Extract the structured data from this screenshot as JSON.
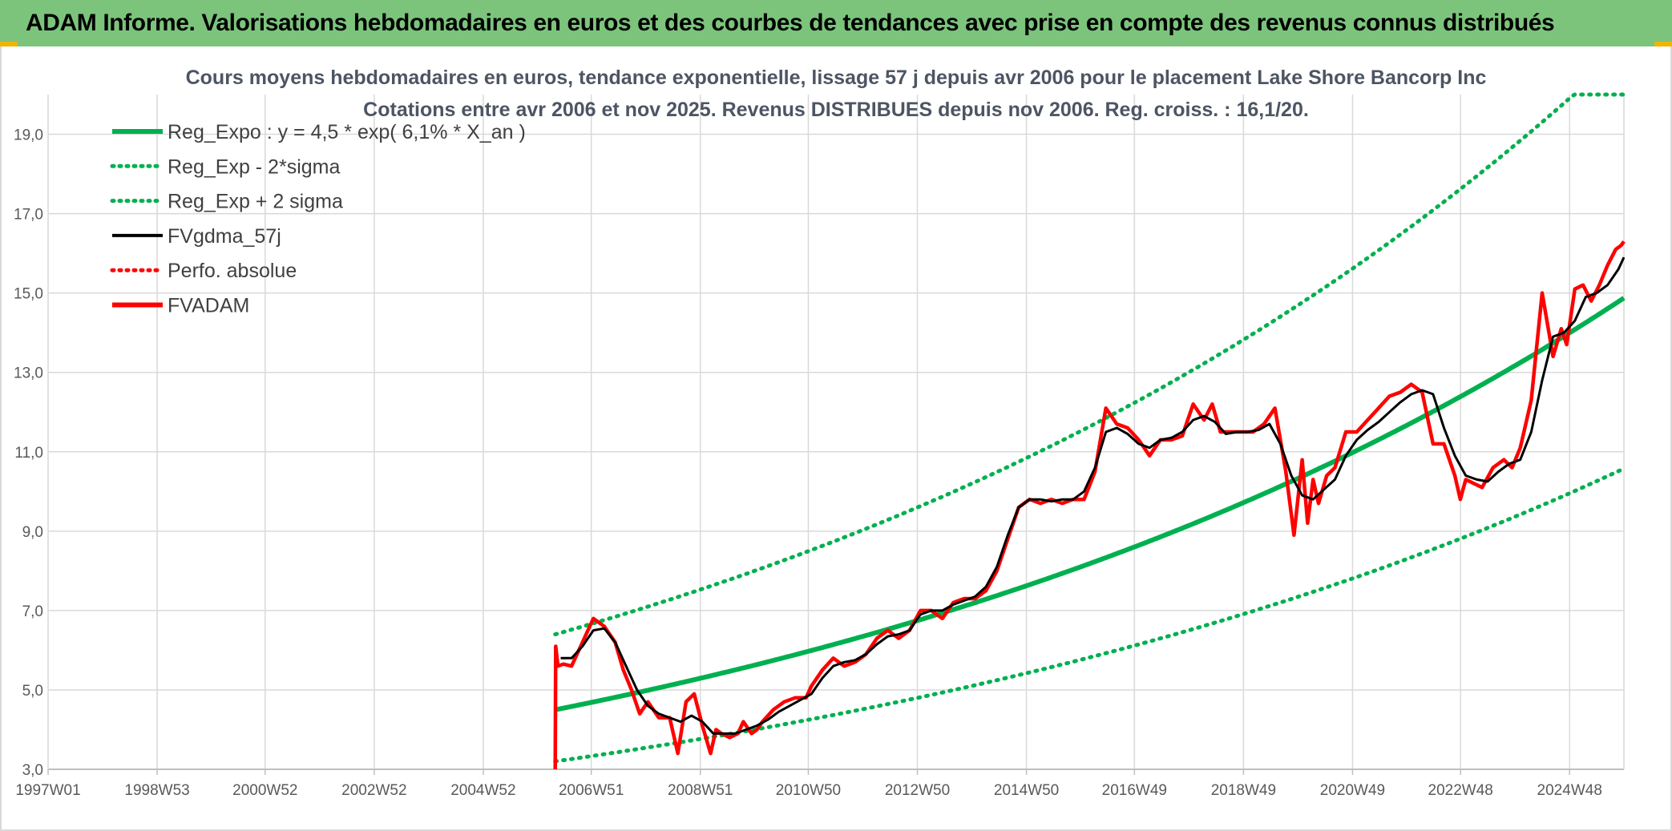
{
  "banner": {
    "title": "ADAM Informe. Valorisations hebdomadaires en euros et des courbes de tendances avec prise en compte des revenus connus distribués"
  },
  "colors": {
    "banner_bg": "#7cc47c",
    "reg_expo": "#00b050",
    "fvgdma": "#000000",
    "fvadam": "#ff0000",
    "grid": "#d9d9d9"
  },
  "chart_data": {
    "type": "line",
    "title_lines": [
      "Cours moyens hebdomadaires en euros, tendance exponentielle, lissage 57 j depuis avr 2006 pour le placement Lake Shore Bancorp Inc",
      "Cotations entre avr 2006 et nov 2025. Revenus DISTRIBUES depuis nov 2006. Reg. croiss. : 16,1/20."
    ],
    "x_axis": {
      "type": "time",
      "range": [
        "1997W01",
        "2025W47"
      ],
      "tick_labels": [
        "1997W01",
        "1998W53",
        "2000W52",
        "2002W52",
        "2004W52",
        "2006W51",
        "2008W51",
        "2010W50",
        "2012W50",
        "2014W50",
        "2016W49",
        "2018W49",
        "2020W49",
        "2022W48",
        "2024W48"
      ]
    },
    "y_axis": {
      "range": [
        3.0,
        20.0
      ],
      "ticks": [
        3.0,
        5.0,
        7.0,
        9.0,
        11.0,
        13.0,
        15.0,
        17.0,
        19.0
      ],
      "tick_labels": [
        "3,0",
        "5,0",
        "7,0",
        "9,0",
        "11,0",
        "13,0",
        "15,0",
        "17,0",
        "19,0"
      ]
    },
    "grid": true,
    "legend_position": "top-left",
    "legend": [
      {
        "label": "Reg_Expo : y = 4,5 * exp( 6,1% *  X_an )",
        "color": "#00b050",
        "style": "solid-thick"
      },
      {
        "label": "Reg_Exp - 2*sigma",
        "color": "#00b050",
        "style": "dotted"
      },
      {
        "label": "Reg_Exp + 2 sigma",
        "color": "#00b050",
        "style": "dotted"
      },
      {
        "label": "FVgdma_57j",
        "color": "#000000",
        "style": "solid"
      },
      {
        "label": "Perfo. absolue",
        "color": "#ff0000",
        "style": "dotted"
      },
      {
        "label": "FVADAM",
        "color": "#ff0000",
        "style": "solid-thick"
      }
    ],
    "regression": {
      "a": 4.5,
      "rate": 0.061,
      "start": 2006.3,
      "end": 2025.9,
      "lower_start": 3.2,
      "upper_start": 6.4,
      "upper_cap": 20.0
    },
    "series": [
      {
        "name": "FVADAM",
        "x": [
          2006.3,
          2006.31,
          2006.35,
          2006.45,
          2006.6,
          2006.8,
          2007.0,
          2007.2,
          2007.4,
          2007.55,
          2007.7,
          2007.85,
          2008.0,
          2008.2,
          2008.4,
          2008.55,
          2008.7,
          2008.85,
          2009.0,
          2009.15,
          2009.25,
          2009.35,
          2009.5,
          2009.65,
          2009.75,
          2009.9,
          2010.0,
          2010.1,
          2010.3,
          2010.5,
          2010.7,
          2010.9,
          2011.0,
          2011.2,
          2011.4,
          2011.6,
          2011.8,
          2012.0,
          2012.2,
          2012.4,
          2012.6,
          2012.8,
          2013.0,
          2013.2,
          2013.4,
          2013.6,
          2013.8,
          2014.0,
          2014.2,
          2014.4,
          2014.6,
          2014.8,
          2015.0,
          2015.2,
          2015.4,
          2015.6,
          2015.8,
          2016.0,
          2016.2,
          2016.4,
          2016.6,
          2016.8,
          2017.0,
          2017.2,
          2017.4,
          2017.6,
          2017.8,
          2018.0,
          2018.2,
          2018.35,
          2018.5,
          2018.7,
          2018.9,
          2019.1,
          2019.3,
          2019.5,
          2019.7,
          2019.85,
          2020.0,
          2020.1,
          2020.2,
          2020.3,
          2020.45,
          2020.6,
          2020.8,
          2021.0,
          2021.2,
          2021.4,
          2021.6,
          2021.8,
          2022.0,
          2022.2,
          2022.4,
          2022.6,
          2022.8,
          2022.9,
          2023.0,
          2023.15,
          2023.3,
          2023.5,
          2023.7,
          2023.85,
          2024.0,
          2024.2,
          2024.4,
          2024.6,
          2024.75,
          2024.85,
          2025.0,
          2025.15,
          2025.3,
          2025.45,
          2025.6,
          2025.75,
          2025.85,
          2025.9
        ],
        "values": [
          3.0,
          6.1,
          5.6,
          5.65,
          5.6,
          6.2,
          6.8,
          6.6,
          6.2,
          5.5,
          5.0,
          4.4,
          4.7,
          4.3,
          4.3,
          3.4,
          4.7,
          4.9,
          4.1,
          3.4,
          4.0,
          3.9,
          3.8,
          3.9,
          4.2,
          3.9,
          4.0,
          4.2,
          4.5,
          4.7,
          4.8,
          4.8,
          5.1,
          5.5,
          5.8,
          5.6,
          5.7,
          5.9,
          6.3,
          6.5,
          6.3,
          6.5,
          7.0,
          7.0,
          6.8,
          7.2,
          7.3,
          7.3,
          7.5,
          8.0,
          8.8,
          9.6,
          9.8,
          9.7,
          9.8,
          9.7,
          9.8,
          9.8,
          10.5,
          12.1,
          11.7,
          11.6,
          11.3,
          10.9,
          11.3,
          11.3,
          11.4,
          12.2,
          11.8,
          12.2,
          11.5,
          11.5,
          11.5,
          11.5,
          11.7,
          12.1,
          10.5,
          8.9,
          10.8,
          9.2,
          10.3,
          9.7,
          10.4,
          10.6,
          11.5,
          11.5,
          11.8,
          12.1,
          12.4,
          12.5,
          12.7,
          12.5,
          11.2,
          11.2,
          10.4,
          9.8,
          10.3,
          10.2,
          10.1,
          10.6,
          10.8,
          10.6,
          11.1,
          12.3,
          15.0,
          13.4,
          14.1,
          13.7,
          15.1,
          15.2,
          14.8,
          15.2,
          15.7,
          16.1,
          16.2,
          16.3
        ]
      },
      {
        "name": "FVgdma_57j",
        "x": [
          2006.4,
          2006.6,
          2006.8,
          2007.0,
          2007.2,
          2007.4,
          2007.6,
          2007.8,
          2008.0,
          2008.2,
          2008.4,
          2008.6,
          2008.8,
          2009.0,
          2009.2,
          2009.4,
          2009.6,
          2009.8,
          2010.0,
          2010.2,
          2010.4,
          2010.6,
          2010.8,
          2011.0,
          2011.2,
          2011.4,
          2011.6,
          2011.8,
          2012.0,
          2012.2,
          2012.4,
          2012.6,
          2012.8,
          2013.0,
          2013.2,
          2013.4,
          2013.6,
          2013.8,
          2014.0,
          2014.2,
          2014.4,
          2014.6,
          2014.8,
          2015.0,
          2015.2,
          2015.4,
          2015.6,
          2015.8,
          2016.0,
          2016.2,
          2016.4,
          2016.6,
          2016.8,
          2017.0,
          2017.2,
          2017.4,
          2017.6,
          2017.8,
          2018.0,
          2018.2,
          2018.4,
          2018.6,
          2018.8,
          2019.0,
          2019.2,
          2019.4,
          2019.6,
          2019.8,
          2020.0,
          2020.2,
          2020.4,
          2020.6,
          2020.8,
          2021.0,
          2021.2,
          2021.4,
          2021.6,
          2021.8,
          2022.0,
          2022.2,
          2022.4,
          2022.6,
          2022.8,
          2023.0,
          2023.2,
          2023.4,
          2023.6,
          2023.8,
          2024.0,
          2024.2,
          2024.4,
          2024.6,
          2024.8,
          2025.0,
          2025.2,
          2025.4,
          2025.6,
          2025.8,
          2025.9
        ],
        "values": [
          5.8,
          5.8,
          6.1,
          6.5,
          6.55,
          6.2,
          5.6,
          5.0,
          4.6,
          4.4,
          4.3,
          4.2,
          4.35,
          4.2,
          3.9,
          3.9,
          3.9,
          4.0,
          4.1,
          4.25,
          4.45,
          4.6,
          4.75,
          4.9,
          5.3,
          5.6,
          5.7,
          5.75,
          5.9,
          6.15,
          6.35,
          6.4,
          6.5,
          6.9,
          7.0,
          7.0,
          7.15,
          7.25,
          7.35,
          7.6,
          8.1,
          8.9,
          9.6,
          9.8,
          9.8,
          9.75,
          9.8,
          9.8,
          10.0,
          10.6,
          11.5,
          11.6,
          11.45,
          11.2,
          11.1,
          11.3,
          11.35,
          11.5,
          11.8,
          11.9,
          11.75,
          11.45,
          11.5,
          11.5,
          11.55,
          11.7,
          11.2,
          10.4,
          9.9,
          9.8,
          10.05,
          10.3,
          10.9,
          11.3,
          11.55,
          11.75,
          12.0,
          12.25,
          12.45,
          12.55,
          12.45,
          11.6,
          10.9,
          10.4,
          10.3,
          10.25,
          10.5,
          10.7,
          10.8,
          11.5,
          12.8,
          13.9,
          14.0,
          14.3,
          14.9,
          15.0,
          15.2,
          15.6,
          15.9
        ]
      }
    ]
  }
}
